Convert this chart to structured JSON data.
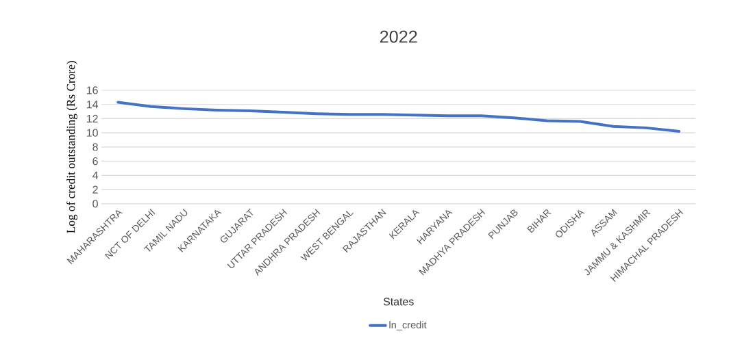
{
  "chart_data": {
    "type": "line",
    "title": "2022",
    "xlabel": "States",
    "ylabel": "Log of credit outstanding (Rs Crore)",
    "categories": [
      "MAHARASHTRA",
      "NCT OF DELHI",
      "TAMIL NADU",
      "KARNATAKA",
      "GUJARAT",
      "UTTAR PRADESH",
      "ANDHRA PRADESH",
      "WEST BENGAL",
      "RAJASTHAN",
      "KERALA",
      "HARYANA",
      "MADHYA PRADESH",
      "PUNJAB",
      "BIHAR",
      "ODISHA",
      "ASSAM",
      "JAMMU & KASHMIR",
      "HIMACHAL PRADESH"
    ],
    "series": [
      {
        "name": "ln_credit",
        "color": "#4472c4",
        "values": [
          14.3,
          13.7,
          13.4,
          13.2,
          13.1,
          12.9,
          12.7,
          12.6,
          12.6,
          12.5,
          12.4,
          12.4,
          12.1,
          11.7,
          11.6,
          10.9,
          10.7,
          10.2
        ]
      }
    ],
    "ylim": [
      0,
      16
    ],
    "yticks": [
      0,
      2,
      4,
      6,
      8,
      10,
      12,
      14,
      16
    ],
    "grid": "y",
    "legend": "bottom",
    "line_style": "solid"
  }
}
